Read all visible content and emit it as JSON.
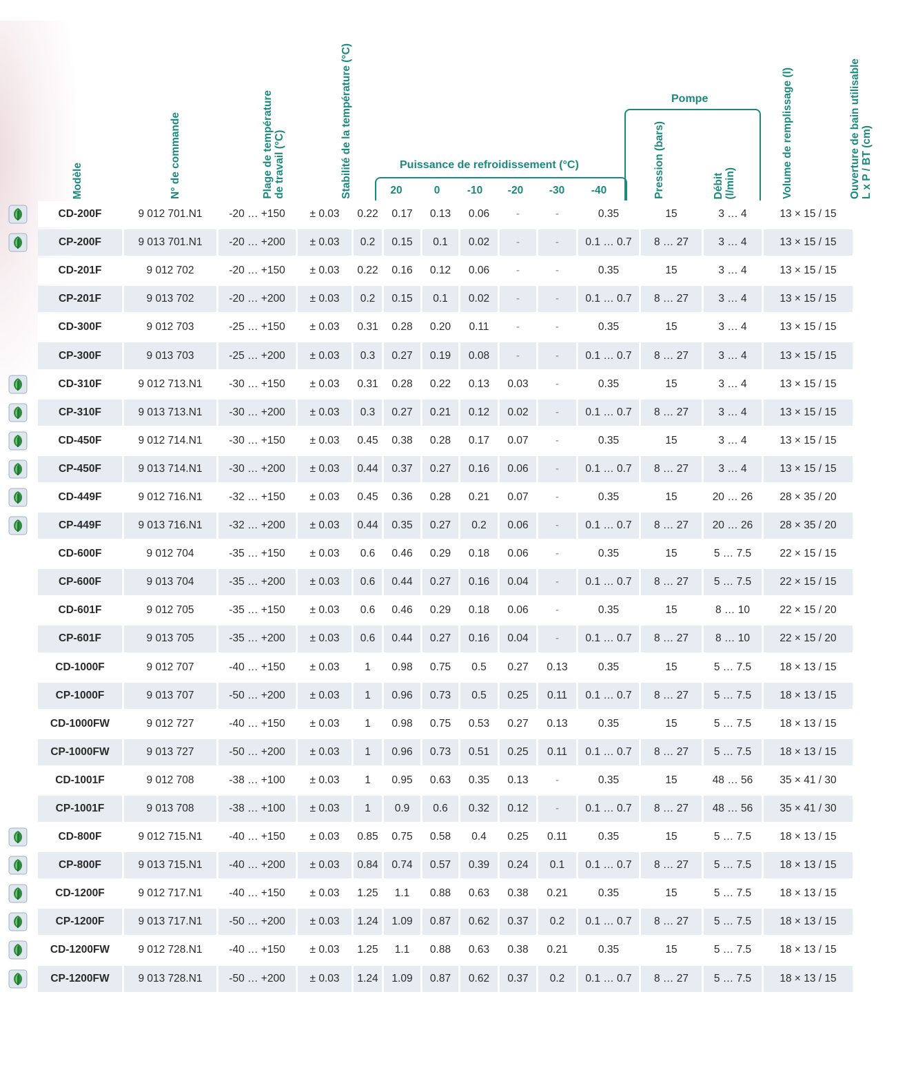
{
  "headers": {
    "model": "Modèle",
    "order_no": "N° de commande",
    "temp_range_1": "Plage de température",
    "temp_range_2": "de travail (°C)",
    "stability": "Stabilité de la température (°C)",
    "cooling_title": "Puissance de refroidissement (°C)",
    "cooling_temps": [
      "20",
      "0",
      "-10",
      "-20",
      "-30",
      "-40"
    ],
    "pump_title": "Pompe",
    "pressure": "Pression (bars)",
    "flow_1": "Débit",
    "flow_2": "(l/min)",
    "volume": "Volume de remplissage (l)",
    "opening_1": "Ouverture de bain utilisable",
    "opening_2": "L x P / BT (cm)"
  },
  "icon_name": "eco-leaf-icon",
  "rows": [
    {
      "eco": true,
      "model": "CD-200F",
      "order": "9 012 701.N1",
      "range": "-20 … +150",
      "stab": "± 0.03",
      "c": [
        "0.22",
        "0.17",
        "0.13",
        "0.06",
        "-",
        "-"
      ],
      "pressure": "0.35",
      "flow": "15",
      "volume": "3 … 4",
      "opening": "13 × 15 / 15"
    },
    {
      "eco": true,
      "model": "CP-200F",
      "order": "9 013 701.N1",
      "range": "-20 … +200",
      "stab": "± 0.03",
      "c": [
        "0.2",
        "0.15",
        "0.1",
        "0.02",
        "-",
        "-"
      ],
      "pressure": "0.1 … 0.7",
      "flow": "8 … 27",
      "volume": "3 … 4",
      "opening": "13 × 15 / 15"
    },
    {
      "eco": false,
      "model": "CD-201F",
      "order": "9 012 702",
      "range": "-20 … +150",
      "stab": "± 0.03",
      "c": [
        "0.22",
        "0.16",
        "0.12",
        "0.06",
        "-",
        "-"
      ],
      "pressure": "0.35",
      "flow": "15",
      "volume": "3 … 4",
      "opening": "13 × 15 / 15"
    },
    {
      "eco": false,
      "model": "CP-201F",
      "order": "9 013 702",
      "range": "-20 … +200",
      "stab": "± 0.03",
      "c": [
        "0.2",
        "0.15",
        "0.1",
        "0.02",
        "-",
        "-"
      ],
      "pressure": "0.1 … 0.7",
      "flow": "8 … 27",
      "volume": "3 … 4",
      "opening": "13 × 15 / 15"
    },
    {
      "eco": false,
      "model": "CD-300F",
      "order": "9 012 703",
      "range": "-25 … +150",
      "stab": "± 0.03",
      "c": [
        "0.31",
        "0.28",
        "0.20",
        "0.11",
        "-",
        "-"
      ],
      "pressure": "0.35",
      "flow": "15",
      "volume": "3 … 4",
      "opening": "13 × 15 / 15"
    },
    {
      "eco": false,
      "model": "CP-300F",
      "order": "9 013 703",
      "range": "-25 … +200",
      "stab": "± 0.03",
      "c": [
        "0.3",
        "0.27",
        "0.19",
        "0.08",
        "-",
        "-"
      ],
      "pressure": "0.1 … 0.7",
      "flow": "8 … 27",
      "volume": "3 … 4",
      "opening": "13 × 15 / 15"
    },
    {
      "eco": true,
      "model": "CD-310F",
      "order": "9 012 713.N1",
      "range": "-30 … +150",
      "stab": "± 0.03",
      "c": [
        "0.31",
        "0.28",
        "0.22",
        "0.13",
        "0.03",
        "-"
      ],
      "pressure": "0.35",
      "flow": "15",
      "volume": "3 … 4",
      "opening": "13 × 15 / 15"
    },
    {
      "eco": true,
      "model": "CP-310F",
      "order": "9 013 713.N1",
      "range": "-30 … +200",
      "stab": "± 0.03",
      "c": [
        "0.3",
        "0.27",
        "0.21",
        "0.12",
        "0.02",
        "-"
      ],
      "pressure": "0.1 … 0.7",
      "flow": "8 … 27",
      "volume": "3 … 4",
      "opening": "13 × 15 / 15"
    },
    {
      "eco": true,
      "model": "CD-450F",
      "order": "9 012 714.N1",
      "range": "-30 … +150",
      "stab": "± 0.03",
      "c": [
        "0.45",
        "0.38",
        "0.28",
        "0.17",
        "0.07",
        "-"
      ],
      "pressure": "0.35",
      "flow": "15",
      "volume": "3 … 4",
      "opening": "13 × 15 / 15"
    },
    {
      "eco": true,
      "model": "CP-450F",
      "order": "9 013 714.N1",
      "range": "-30 … +200",
      "stab": "± 0.03",
      "c": [
        "0.44",
        "0.37",
        "0.27",
        "0.16",
        "0.06",
        "-"
      ],
      "pressure": "0.1 … 0.7",
      "flow": "8 … 27",
      "volume": "3 … 4",
      "opening": "13 × 15 / 15"
    },
    {
      "eco": true,
      "model": "CD-449F",
      "order": "9 012 716.N1",
      "range": "-32 … +150",
      "stab": "± 0.03",
      "c": [
        "0.45",
        "0.36",
        "0.28",
        "0.21",
        "0.07",
        "-"
      ],
      "pressure": "0.35",
      "flow": "15",
      "volume": "20 … 26",
      "opening": "28 × 35 / 20"
    },
    {
      "eco": true,
      "model": "CP-449F",
      "order": "9 013 716.N1",
      "range": "-32 … +200",
      "stab": "± 0.03",
      "c": [
        "0.44",
        "0.35",
        "0.27",
        "0.2",
        "0.06",
        "-"
      ],
      "pressure": "0.1 … 0.7",
      "flow": "8 … 27",
      "volume": "20 … 26",
      "opening": "28 × 35 / 20"
    },
    {
      "eco": false,
      "model": "CD-600F",
      "order": "9 012 704",
      "range": "-35 … +150",
      "stab": "± 0.03",
      "c": [
        "0.6",
        "0.46",
        "0.29",
        "0.18",
        "0.06",
        "-"
      ],
      "pressure": "0.35",
      "flow": "15",
      "volume": "5 … 7.5",
      "opening": "22 × 15 / 15"
    },
    {
      "eco": false,
      "model": "CP-600F",
      "order": "9 013 704",
      "range": "-35 … +200",
      "stab": "± 0.03",
      "c": [
        "0.6",
        "0.44",
        "0.27",
        "0.16",
        "0.04",
        "-"
      ],
      "pressure": "0.1 … 0.7",
      "flow": "8 … 27",
      "volume": "5 … 7.5",
      "opening": "22 × 15 / 15"
    },
    {
      "eco": false,
      "model": "CD-601F",
      "order": "9 012 705",
      "range": "-35 … +150",
      "stab": "± 0.03",
      "c": [
        "0.6",
        "0.46",
        "0.29",
        "0.18",
        "0.06",
        "-"
      ],
      "pressure": "0.35",
      "flow": "15",
      "volume": "8 … 10",
      "opening": "22 × 15 / 20"
    },
    {
      "eco": false,
      "model": "CP-601F",
      "order": "9 013 705",
      "range": "-35 … +200",
      "stab": "± 0.03",
      "c": [
        "0.6",
        "0.44",
        "0.27",
        "0.16",
        "0.04",
        "-"
      ],
      "pressure": "0.1 … 0.7",
      "flow": "8 … 27",
      "volume": "8 … 10",
      "opening": "22 × 15 / 20"
    },
    {
      "eco": false,
      "model": "CD-1000F",
      "order": "9 012 707",
      "range": "-40 … +150",
      "stab": "± 0.03",
      "c": [
        "1",
        "0.98",
        "0.75",
        "0.5",
        "0.27",
        "0.13"
      ],
      "pressure": "0.35",
      "flow": "15",
      "volume": "5 … 7.5",
      "opening": "18 × 13 / 15"
    },
    {
      "eco": false,
      "model": "CP-1000F",
      "order": "9 013 707",
      "range": "-50 … +200",
      "stab": "± 0.03",
      "c": [
        "1",
        "0.96",
        "0.73",
        "0.5",
        "0.25",
        "0.11"
      ],
      "pressure": "0.1 … 0.7",
      "flow": "8 … 27",
      "volume": "5 … 7.5",
      "opening": "18 × 13 / 15"
    },
    {
      "eco": false,
      "model": "CD-1000FW",
      "order": "9 012 727",
      "range": "-40 … +150",
      "stab": "± 0.03",
      "c": [
        "1",
        "0.98",
        "0.75",
        "0.53",
        "0.27",
        "0.13"
      ],
      "pressure": "0.35",
      "flow": "15",
      "volume": "5 … 7.5",
      "opening": "18 × 13 / 15"
    },
    {
      "eco": false,
      "model": "CP-1000FW",
      "order": "9 013 727",
      "range": "-50 … +200",
      "stab": "± 0.03",
      "c": [
        "1",
        "0.96",
        "0.73",
        "0.51",
        "0.25",
        "0.11"
      ],
      "pressure": "0.1 … 0.7",
      "flow": "8 … 27",
      "volume": "5 … 7.5",
      "opening": "18 × 13 / 15"
    },
    {
      "eco": false,
      "model": "CD-1001F",
      "order": "9 012 708",
      "range": "-38 … +100",
      "stab": "± 0.03",
      "c": [
        "1",
        "0.95",
        "0.63",
        "0.35",
        "0.13",
        "-"
      ],
      "pressure": "0.35",
      "flow": "15",
      "volume": "48 … 56",
      "opening": "35 × 41 / 30"
    },
    {
      "eco": false,
      "model": "CP-1001F",
      "order": "9 013 708",
      "range": "-38 … +100",
      "stab": "± 0.03",
      "c": [
        "1",
        "0.9",
        "0.6",
        "0.32",
        "0.12",
        "-"
      ],
      "pressure": "0.1 … 0.7",
      "flow": "8 … 27",
      "volume": "48 … 56",
      "opening": "35 × 41 / 30"
    },
    {
      "eco": true,
      "model": "CD-800F",
      "order": "9 012 715.N1",
      "range": "-40 … +150",
      "stab": "± 0.03",
      "c": [
        "0.85",
        "0.75",
        "0.58",
        "0.4",
        "0.25",
        "0.11"
      ],
      "pressure": "0.35",
      "flow": "15",
      "volume": "5 … 7.5",
      "opening": "18 × 13 / 15"
    },
    {
      "eco": true,
      "model": "CP-800F",
      "order": "9 013 715.N1",
      "range": "-40 … +200",
      "stab": "± 0.03",
      "c": [
        "0.84",
        "0.74",
        "0.57",
        "0.39",
        "0.24",
        "0.1"
      ],
      "pressure": "0.1 … 0.7",
      "flow": "8 … 27",
      "volume": "5 … 7.5",
      "opening": "18 × 13 / 15"
    },
    {
      "eco": true,
      "model": "CD-1200F",
      "order": "9 012 717.N1",
      "range": "-40 … +150",
      "stab": "± 0.03",
      "c": [
        "1.25",
        "1.1",
        "0.88",
        "0.63",
        "0.38",
        "0.21"
      ],
      "pressure": "0.35",
      "flow": "15",
      "volume": "5 … 7.5",
      "opening": "18 × 13 / 15"
    },
    {
      "eco": true,
      "model": "CP-1200F",
      "order": "9 013 717.N1",
      "range": "-50 … +200",
      "stab": "± 0.03",
      "c": [
        "1.24",
        "1.09",
        "0.87",
        "0.62",
        "0.37",
        "0.2"
      ],
      "pressure": "0.1 … 0.7",
      "flow": "8 … 27",
      "volume": "5 … 7.5",
      "opening": "18 × 13 / 15"
    },
    {
      "eco": true,
      "model": "CD-1200FW",
      "order": "9 012 728.N1",
      "range": "-40 … +150",
      "stab": "± 0.03",
      "c": [
        "1.25",
        "1.1",
        "0.88",
        "0.63",
        "0.38",
        "0.21"
      ],
      "pressure": "0.35",
      "flow": "15",
      "volume": "5 … 7.5",
      "opening": "18 × 13 / 15"
    },
    {
      "eco": true,
      "model": "CP-1200FW",
      "order": "9 013 728.N1",
      "range": "-50 … +200",
      "stab": "± 0.03",
      "c": [
        "1.24",
        "1.09",
        "0.87",
        "0.62",
        "0.37",
        "0.2"
      ],
      "pressure": "0.1 … 0.7",
      "flow": "8 … 27",
      "volume": "5 … 7.5",
      "opening": "18 × 13 / 15"
    }
  ]
}
